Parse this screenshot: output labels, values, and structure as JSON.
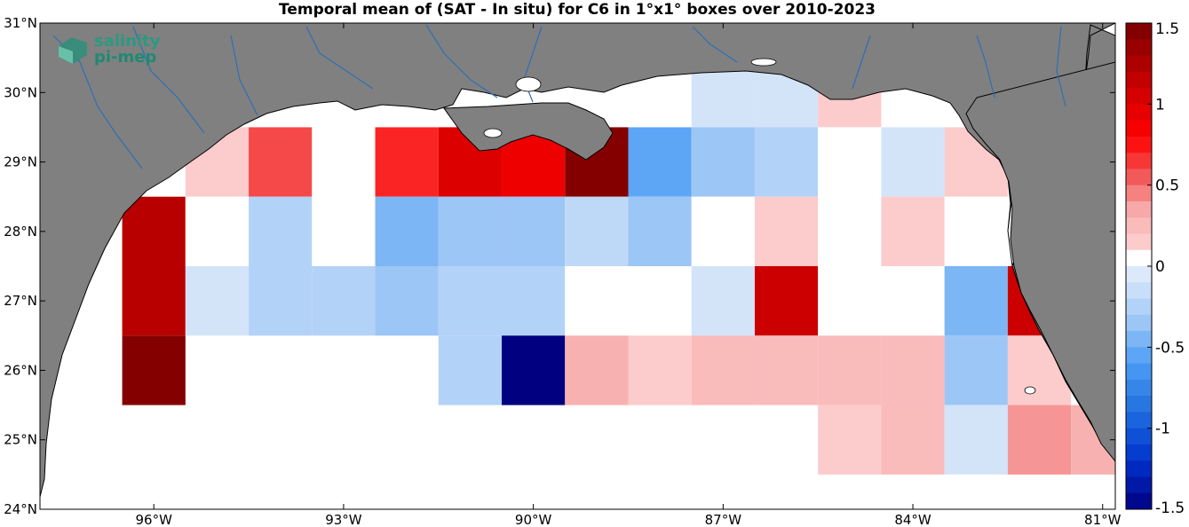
{
  "title": "Temporal mean of (SAT - In situ) for C6 in 1°x1° boxes over 2010-2023",
  "logo": {
    "line1": "salinity",
    "line2": "pi-mep"
  },
  "colors": {
    "land": "#808080",
    "ocean": "#ffffff",
    "coast": "#000000",
    "rivers": "#2e6fb5"
  },
  "axes": {
    "x_ticks": [
      "96°W",
      "93°W",
      "90°W",
      "87°W",
      "84°W",
      "81°W"
    ],
    "x_values": [
      -96,
      -93,
      -90,
      -87,
      -84,
      -81
    ],
    "y_ticks": [
      "31°N",
      "30°N",
      "29°N",
      "28°N",
      "27°N",
      "26°N",
      "25°N",
      "24°N"
    ],
    "y_values": [
      31,
      30,
      29,
      28,
      27,
      26,
      25,
      24
    ],
    "lon_range": [
      -97.8,
      -80.8
    ],
    "lat_range": [
      24,
      31
    ]
  },
  "colorbar": {
    "ticks": [
      "1.5",
      "1",
      "0.5",
      "0",
      "-0.5",
      "-1",
      "-1.5"
    ],
    "values": [
      1.5,
      1,
      0.5,
      0,
      -0.5,
      -1,
      -1.5
    ],
    "range": [
      -1.5,
      1.5
    ]
  },
  "chart_data": {
    "type": "heatmap",
    "title": "Temporal mean of (SAT - In situ) for C6 in 1°x1° boxes over 2010-2023",
    "units": "",
    "clim": [
      -1.5,
      1.5
    ],
    "cells": [
      {
        "lon": -96,
        "lat": 28,
        "v": 1.2
      },
      {
        "lon": -96,
        "lat": 27,
        "v": 1.2
      },
      {
        "lon": -96,
        "lat": 26,
        "v": 1.45
      },
      {
        "lon": -95,
        "lat": 29,
        "v": 0.15
      },
      {
        "lon": -95,
        "lat": 28,
        "v": 0.0
      },
      {
        "lon": -95,
        "lat": 27,
        "v": -0.1
      },
      {
        "lon": -94,
        "lat": 29,
        "v": 0.6
      },
      {
        "lon": -94,
        "lat": 28,
        "v": -0.25
      },
      {
        "lon": -94,
        "lat": 27,
        "v": -0.25
      },
      {
        "lon": -93,
        "lat": 29,
        "v": 0.0
      },
      {
        "lon": -93,
        "lat": 28,
        "v": 0.0
      },
      {
        "lon": -93,
        "lat": 27,
        "v": -0.25
      },
      {
        "lon": -92,
        "lat": 29,
        "v": 0.7
      },
      {
        "lon": -92,
        "lat": 28,
        "v": -0.45
      },
      {
        "lon": -92,
        "lat": 27,
        "v": -0.35
      },
      {
        "lon": -91,
        "lat": 29,
        "v": 1.0
      },
      {
        "lon": -91,
        "lat": 28,
        "v": -0.35
      },
      {
        "lon": -91,
        "lat": 27,
        "v": -0.25
      },
      {
        "lon": -91,
        "lat": 26,
        "v": -0.25
      },
      {
        "lon": -90,
        "lat": 29,
        "v": 0.9
      },
      {
        "lon": -90,
        "lat": 28,
        "v": -0.35
      },
      {
        "lon": -90,
        "lat": 27,
        "v": -0.25
      },
      {
        "lon": -90,
        "lat": 26,
        "v": -1.5
      },
      {
        "lon": -89,
        "lat": 29,
        "v": 1.45
      },
      {
        "lon": -89,
        "lat": 28,
        "v": -0.2
      },
      {
        "lon": -89,
        "lat": 27,
        "v": 0.0
      },
      {
        "lon": -89,
        "lat": 26,
        "v": 0.3
      },
      {
        "lon": -88,
        "lat": 29,
        "v": -0.55
      },
      {
        "lon": -88,
        "lat": 28,
        "v": -0.35
      },
      {
        "lon": -88,
        "lat": 27,
        "v": 0.0
      },
      {
        "lon": -88,
        "lat": 26,
        "v": 0.15
      },
      {
        "lon": -87,
        "lat": 30,
        "v": -0.1
      },
      {
        "lon": -87,
        "lat": 29,
        "v": -0.35
      },
      {
        "lon": -87,
        "lat": 28,
        "v": 0.0
      },
      {
        "lon": -87,
        "lat": 27,
        "v": -0.1
      },
      {
        "lon": -87,
        "lat": 26,
        "v": 0.25
      },
      {
        "lon": -86,
        "lat": 30,
        "v": -0.1
      },
      {
        "lon": -86,
        "lat": 29,
        "v": -0.25
      },
      {
        "lon": -86,
        "lat": 28,
        "v": 0.15
      },
      {
        "lon": -86,
        "lat": 27,
        "v": 1.1
      },
      {
        "lon": -86,
        "lat": 26,
        "v": 0.25
      },
      {
        "lon": -85,
        "lat": 30,
        "v": 0.15
      },
      {
        "lon": -85,
        "lat": 29,
        "v": 0.0
      },
      {
        "lon": -85,
        "lat": 28,
        "v": 0.0
      },
      {
        "lon": -85,
        "lat": 27,
        "v": 0.0
      },
      {
        "lon": -85,
        "lat": 26,
        "v": 0.25
      },
      {
        "lon": -85,
        "lat": 25,
        "v": 0.15
      },
      {
        "lon": -84,
        "lat": 30,
        "v": 0.0
      },
      {
        "lon": -84,
        "lat": 29,
        "v": -0.1
      },
      {
        "lon": -84,
        "lat": 28,
        "v": 0.15
      },
      {
        "lon": -84,
        "lat": 27,
        "v": 0.0
      },
      {
        "lon": -84,
        "lat": 26,
        "v": 0.25
      },
      {
        "lon": -84,
        "lat": 25,
        "v": 0.25
      },
      {
        "lon": -83,
        "lat": 29,
        "v": 0.15
      },
      {
        "lon": -83,
        "lat": 28,
        "v": 0.0
      },
      {
        "lon": -83,
        "lat": 27,
        "v": -0.45
      },
      {
        "lon": -83,
        "lat": 26,
        "v": -0.35
      },
      {
        "lon": -83,
        "lat": 25,
        "v": -0.1
      },
      {
        "lon": -82,
        "lat": 27,
        "v": 1.1
      },
      {
        "lon": -82,
        "lat": 26,
        "v": 0.15
      },
      {
        "lon": -82,
        "lat": 25,
        "v": 0.4
      },
      {
        "lon": -81,
        "lat": 25,
        "v": 0.3
      }
    ]
  }
}
